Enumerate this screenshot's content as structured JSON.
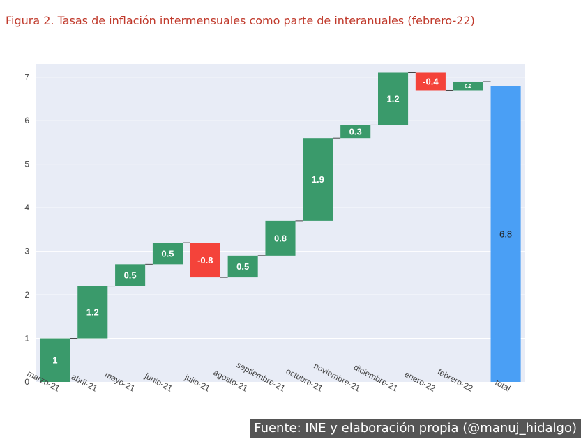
{
  "figure_title": "Figura 2. Tasas de inflación intermensuales como parte de interanuales (febrero-22)",
  "source": "Fuente: INE y elaboración propia (@manuj_hidalgo)",
  "colors": {
    "increase": "#3a9a6b",
    "decrease": "#f4433a",
    "total": "#4a9ff5",
    "plot_bg": "#e8ecf6",
    "grid": "#ffffff"
  },
  "chart_data": {
    "type": "waterfall",
    "categories": [
      "marzo-21",
      "abril-21",
      "mayo-21",
      "junio-21",
      "julio-21",
      "agosto-21",
      "septiembre-21",
      "octubre-21",
      "noviembre-21",
      "diciembre-21",
      "enero-22",
      "febrero-22",
      "total"
    ],
    "values": [
      1,
      1.2,
      0.5,
      0.5,
      -0.8,
      0.5,
      0.8,
      1.9,
      0.3,
      1.2,
      -0.4,
      0.2,
      6.8
    ],
    "labels": [
      "1",
      "1.2",
      "0.5",
      "0.5",
      "-0.8",
      "0.5",
      "0.8",
      "1.9",
      "0.3",
      "1.2",
      "-0.4",
      "0.2",
      "6.8"
    ],
    "measures": [
      "relative",
      "relative",
      "relative",
      "relative",
      "relative",
      "relative",
      "relative",
      "relative",
      "relative",
      "relative",
      "relative",
      "relative",
      "total"
    ],
    "ylim": [
      0,
      7.3
    ],
    "yticks": [
      "0",
      "1",
      "2",
      "3",
      "4",
      "5",
      "6",
      "7"
    ],
    "title": "",
    "xlabel": "",
    "ylabel": "",
    "grid": true
  }
}
